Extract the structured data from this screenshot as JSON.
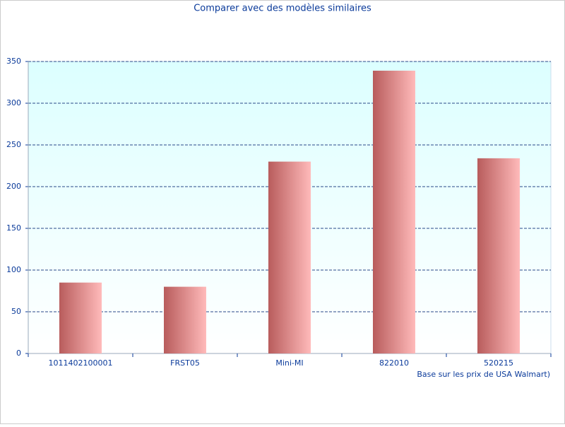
{
  "chart_data": {
    "type": "bar",
    "title": "Comparer avec des modèles similaires",
    "x_label": "Base sur les prix de USA Walmart)",
    "categories": [
      "1011402100001",
      "FRST05",
      "Mini-MI",
      "822010",
      "520215"
    ],
    "values": [
      85,
      80,
      230,
      339,
      234
    ],
    "color": "#b85c5c",
    "ylim": [
      0,
      350
    ],
    "yticks": [
      0,
      50,
      100,
      150,
      200,
      250,
      300,
      350
    ],
    "grid": true
  }
}
